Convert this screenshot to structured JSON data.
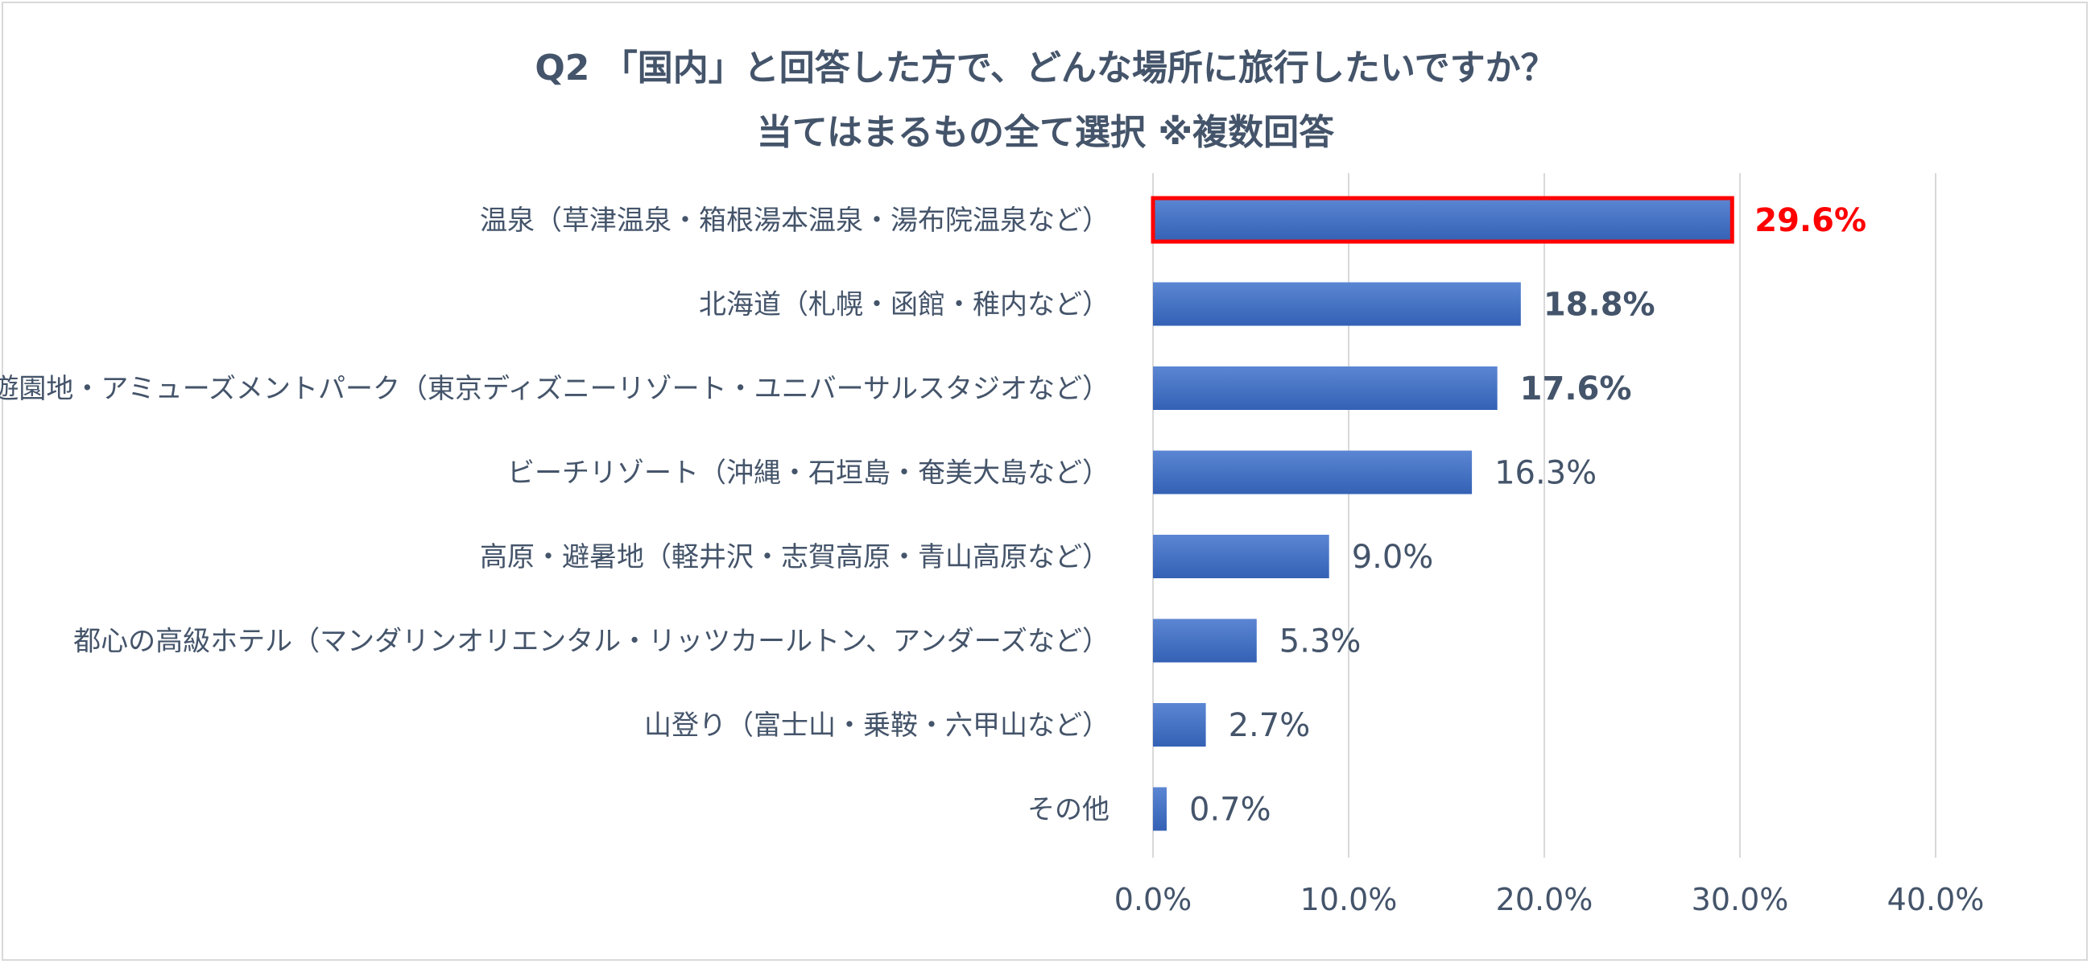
{
  "chart_data": {
    "type": "bar",
    "orientation": "horizontal",
    "title": "Q2 「国内」と回答した方で、どんな場所に旅行したいですか？",
    "subtitle": "当てはまるもの全て選択 ※複数回答",
    "categories": [
      "温泉（草津温泉・箱根湯本温泉・湯布院温泉など）",
      "北海道（札幌・函館・稚内など）",
      "遊園地・アミューズメントパーク（東京ディズニーリゾート・ユニバーサルスタジオなど）",
      "ビーチリゾート（沖縄・石垣島・奄美大島など）",
      "高原・避暑地（軽井沢・志賀高原・青山高原など）",
      "都心の高級ホテル（マンダリンオリエンタル・リッツカールトン、アンダーズなど）",
      "山登り（富士山・乗鞍・六甲山など）",
      "その他"
    ],
    "values": [
      29.6,
      18.8,
      17.6,
      16.3,
      9.0,
      5.3,
      2.7,
      0.7
    ],
    "value_labels": [
      "29.6%",
      "18.8%",
      "17.6%",
      "16.3%",
      "9.0%",
      "5.3%",
      "2.7%",
      "0.7%"
    ],
    "value_label_styles": [
      "highlight",
      "bold",
      "bold",
      "normal",
      "normal",
      "normal",
      "normal",
      "normal"
    ],
    "xlim": [
      0,
      40
    ],
    "x_ticks": [
      0,
      10,
      20,
      30,
      40
    ],
    "x_tick_labels": [
      "0.0%",
      "10.0%",
      "20.0%",
      "30.0%",
      "40.0%"
    ],
    "grid": true,
    "highlight_index": 0,
    "colors": {
      "bar": "#4472c4",
      "bar_light": "#5b86d3",
      "bar_dark": "#3461b5",
      "highlight_border": "#ff0000",
      "highlight_text": "#ff0000",
      "text": "#44546a",
      "gridline": "#d9d9d9"
    }
  }
}
